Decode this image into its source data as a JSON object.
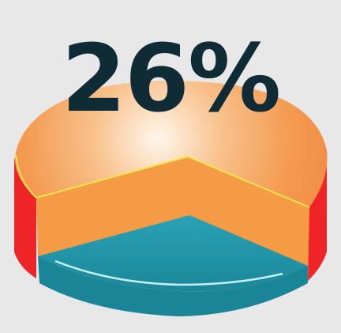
{
  "graphic": {
    "percent_label": "26%",
    "highlighted_share": 26,
    "colors": {
      "background": "#e8e8e8",
      "label": "#0f2b35",
      "orange_top_light": "#fff3e6",
      "orange_top": "#f4a05a",
      "orange_side": "#f59a45",
      "red_side": "#ee2427",
      "teal_slice": "#2296aa",
      "rim_highlight": "#c6f0f5",
      "yellow_edge": "#f3e64a"
    }
  }
}
